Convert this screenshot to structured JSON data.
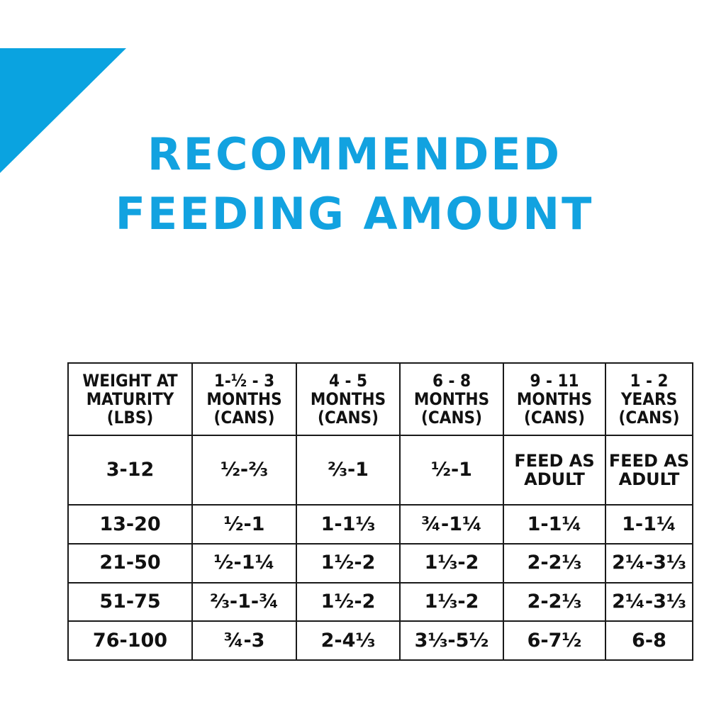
{
  "title": {
    "line1": "RECOMMENDED",
    "line2": "FEEDING AMOUNT"
  },
  "accent_color": "#12a2e0",
  "table": {
    "headers": [
      [
        "WEIGHT AT",
        "MATURITY",
        "(LBS)"
      ],
      [
        "1-½ - 3",
        "MONTHS",
        "(CANS)"
      ],
      [
        "4 - 5",
        "MONTHS",
        "(CANS)"
      ],
      [
        "6 - 8",
        "MONTHS",
        "(CANS)"
      ],
      [
        "9 - 11",
        "MONTHS",
        "(CANS)"
      ],
      [
        "1 - 2",
        "YEARS",
        "(CANS)"
      ]
    ],
    "rows": [
      [
        "3-12",
        "½-⅔",
        "⅔-1",
        "½-1",
        "FEED AS ADULT",
        "FEED AS ADULT"
      ],
      [
        "13-20",
        "½-1",
        "1-1⅓",
        "¾-1¼",
        "1-1¼",
        "1-1¼"
      ],
      [
        "21-50",
        "½-1¼",
        "1½-2",
        "1⅓-2",
        "2-2⅓",
        "2¼-3⅓"
      ],
      [
        "51-75",
        "⅔-1-¾",
        "1½-2",
        "1⅓-2",
        "2-2⅓",
        "2¼-3⅓"
      ],
      [
        "76-100",
        "¾-3",
        "2-4⅓",
        "3⅓-5½",
        "6-7½",
        "6-8"
      ]
    ]
  }
}
